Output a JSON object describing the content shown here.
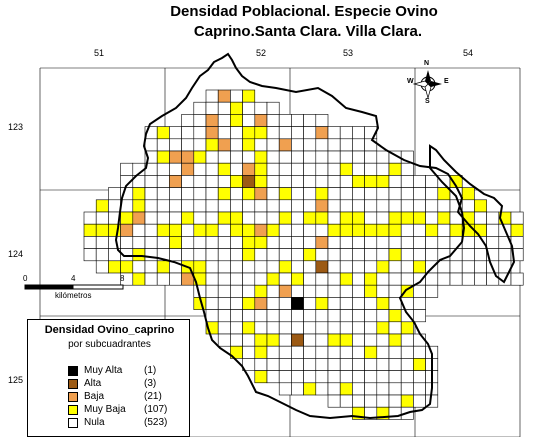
{
  "title": {
    "line1": "Densidad Poblacional.  Especie Ovino",
    "line2": "Caprino.Santa Clara. Villa Clara."
  },
  "axes": {
    "top_labels": [
      "51",
      "52",
      "53",
      "54"
    ],
    "left_labels": [
      "123",
      "124",
      "125"
    ]
  },
  "compass": {
    "n": "N",
    "s": "S",
    "e": "E",
    "w": "W"
  },
  "scale": {
    "ticks": [
      "0",
      "4",
      "8"
    ],
    "unit": "kilómetros"
  },
  "colors": {
    "muy_alta": "#000000",
    "alta": "#9c5a14",
    "baja": "#f0a050",
    "muy_baja": "#ffff00",
    "nula": "#ffffff",
    "grid": "#000000",
    "boundary": "#000000"
  },
  "legend": {
    "title": "Densidad Ovino_caprino",
    "subtitle": "por subcuadrantes",
    "items": [
      {
        "label": "Muy Alta",
        "count": "(1)",
        "color": "#000000"
      },
      {
        "label": "Alta",
        "count": "(3)",
        "color": "#9c5a14"
      },
      {
        "label": "Baja",
        "count": "(21)",
        "color": "#f0a050"
      },
      {
        "label": "Muy Baja",
        "count": "(107)",
        "color": "#ffff00"
      },
      {
        "label": "Nula",
        "count": "(523)",
        "color": "#ffffff"
      }
    ]
  }
}
